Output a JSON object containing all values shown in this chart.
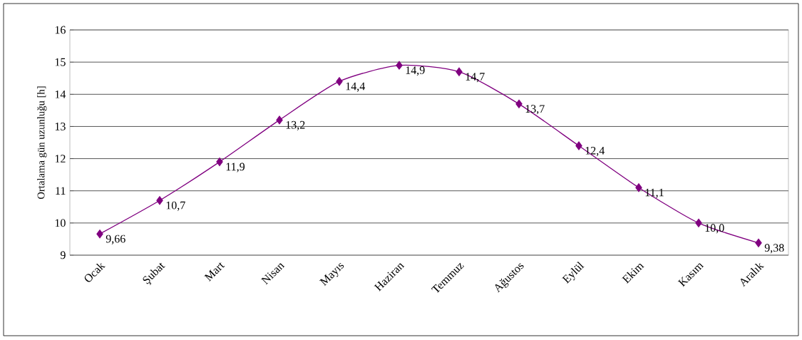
{
  "chart_data": {
    "type": "line",
    "ylabel": "Ortalama gün uzunluğu [h]",
    "categories": [
      "Ocak",
      "Şubat",
      "Mart",
      "Nisan",
      "Mayıs",
      "Haziran",
      "Temmuz",
      "Ağustos",
      "Eylül",
      "Ekim",
      "Kasım",
      "Aralık"
    ],
    "series": [
      {
        "color": "#800080",
        "values": [
          9.66,
          10.7,
          11.9,
          13.2,
          14.4,
          14.9,
          14.7,
          13.7,
          12.4,
          11.1,
          10.0,
          9.38
        ],
        "value_labels": [
          "9,66",
          "10,7",
          "11,9",
          "13,2",
          "14,4",
          "14,9",
          "14,7",
          "13,7",
          "12,4",
          "11,1",
          "10,0",
          "9,38"
        ]
      }
    ],
    "ylim": [
      9,
      16
    ],
    "yticks": [
      9,
      10,
      11,
      12,
      13,
      14,
      15,
      16
    ],
    "grid": "y",
    "marker": "diamond"
  }
}
